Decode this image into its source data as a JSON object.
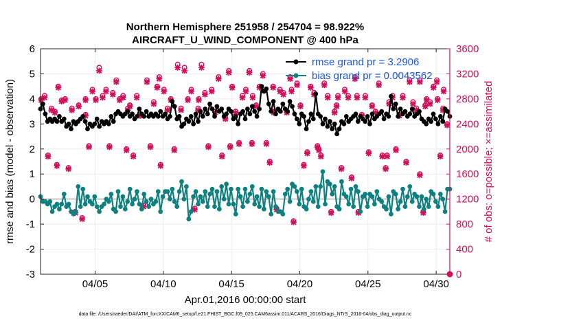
{
  "chart_data": {
    "type": "line",
    "title_line1": "Northern Hemisphere 251958 / 254704 = 98.922%",
    "title_line2": "AIRCRAFT_U_WIND_COMPONENT @ 400 hPa",
    "xlabel": "Apr.01,2016 00:00:00 start",
    "ylabel_left": "rmse and bias (model - observation)",
    "ylabel_right": "# of obs: o=possible; ×=assimilated",
    "footer": "data file: /Users/raeder/DAI/ATM_forcXX/CAM6_setup/f.e21.FHIST_BGC.f09_025.CAM6assim.011/ACARS_2016/Diags_NTrS_2016-04/obs_diag_output.nc",
    "xlim": [
      1.0,
      31.0
    ],
    "ylim_left": [
      -3,
      6
    ],
    "ylim_right": [
      0,
      3600
    ],
    "x_ticks": [
      5,
      10,
      15,
      20,
      25,
      30
    ],
    "x_tick_labels": [
      "04/05",
      "04/10",
      "04/15",
      "04/20",
      "04/25",
      "04/30"
    ],
    "y_ticks_left": [
      "-3",
      "-2",
      "-1",
      "0",
      "1",
      "2",
      "3",
      "4",
      "5",
      "6"
    ],
    "y_ticks_right": [
      "0",
      "400",
      "800",
      "1200",
      "1600",
      "2000",
      "2400",
      "2800",
      "3200",
      "3600"
    ],
    "legend": [
      {
        "name": "rmse grand pr = 3.2906",
        "color": "#000000"
      },
      {
        "name": "bias grand pr = 0.0043562",
        "color": "#0f8080"
      }
    ],
    "colors": {
      "rmse": "#000000",
      "bias": "#0f8080",
      "obs": "#d0105a",
      "axis_right": "#d0105a"
    },
    "series": [
      {
        "name": "rmse",
        "values": [
          3.6,
          3.8,
          3.4,
          3.1,
          3.2,
          3.1,
          3.2,
          3.1,
          3.3,
          3.1,
          3.2,
          2.9,
          3.0,
          2.8,
          3.1,
          3.0,
          3.1,
          3.2,
          3.3,
          3.1,
          2.8,
          3.0,
          2.9,
          3.0,
          3.2,
          2.9,
          3.1,
          3.0,
          3.1,
          3.0,
          3.3,
          3.1,
          3.4,
          3.5,
          3.4,
          3.3,
          3.4,
          3.5,
          3.3,
          3.4,
          3.2,
          3.3,
          3.6,
          3.4,
          3.3,
          3.5,
          3.3,
          3.4,
          3.3,
          3.4,
          3.3,
          3.5,
          3.3,
          3.4,
          3.2,
          3.3,
          3.9,
          3.7,
          3.2,
          3.3,
          2.9,
          3.0,
          3.2,
          3.1,
          3.3,
          3.0,
          3.4,
          3.1,
          3.5,
          3.3,
          3.6,
          3.4,
          3.8,
          3.6,
          3.3,
          3.7,
          3.5,
          3.6,
          3.3,
          3.4,
          3.6,
          3.5,
          3.2,
          3.3,
          3.0,
          3.4,
          3.5,
          3.2,
          3.6,
          3.4,
          3.7,
          3.5,
          3.3,
          3.6,
          4.5,
          4.3,
          4.4,
          3.8,
          3.5,
          3.9,
          3.4,
          3.6,
          3.5,
          3.8,
          3.6,
          3.5,
          3.9,
          3.7,
          3.4,
          3.2,
          3.0,
          3.4,
          3.3,
          2.8,
          3.1,
          3.4,
          3.2,
          4.2,
          3.4,
          3.3,
          3.0,
          3.2,
          2.9,
          3.1,
          2.8,
          3.0,
          2.6,
          2.8,
          3.1,
          3.0,
          3.3,
          3.1,
          3.2,
          3.3,
          3.4,
          3.1,
          3.3,
          3.2,
          3.1,
          3.3,
          3.0,
          3.4,
          3.2,
          3.3,
          3.4,
          3.5,
          3.2,
          3.4,
          3.3,
          4.1,
          3.6,
          3.8,
          3.3,
          3.6,
          3.4,
          3.5,
          3.3,
          3.4,
          3.6,
          3.3,
          3.4,
          3.5,
          3.2,
          3.1,
          3.0,
          3.2,
          3.1,
          3.4,
          3.2,
          3.0,
          3.3,
          3.1,
          3.6,
          3.5,
          3.3
        ]
      },
      {
        "name": "bias",
        "values": [
          0.1,
          -0.1,
          -0.1,
          -0.2,
          -0.1,
          -0.5,
          -0.3,
          -0.2,
          -0.4,
          -0.2,
          0.2,
          -0.3,
          -0.2,
          -0.5,
          -0.6,
          -0.5,
          0.5,
          -0.3,
          0.4,
          -0.2,
          0.1,
          -0.1,
          -0.2,
          0.1,
          -0.3,
          -0.5,
          -0.3,
          -0.2,
          0.0,
          -0.1,
          0.2,
          -0.4,
          -0.5,
          0.3,
          -0.3,
          0.1,
          -0.4,
          -0.1,
          0.4,
          -0.2,
          0.0,
          0.3,
          -0.2,
          -0.4,
          0.2,
          -0.1,
          -0.3,
          0.0,
          -0.2,
          -0.1,
          0.3,
          -0.5,
          0.1,
          0.3,
          0.3,
          0.0,
          0.4,
          -0.1,
          -0.3,
          0.3,
          0.7,
          0.0,
          0.5,
          -0.8,
          -0.5,
          0.1,
          0.3,
          -0.2,
          0.1,
          -0.1,
          0.3,
          -0.3,
          0.2,
          0.4,
          -0.3,
          0.3,
          -0.4,
          0.5,
          0.0,
          0.6,
          -0.2,
          0.4,
          -0.2,
          -0.6,
          0.4,
          0.1,
          -0.3,
          0.4,
          -0.1,
          0.2,
          0.5,
          -0.2,
          0.1,
          -0.3,
          0.4,
          -0.4,
          0.3,
          0.1,
          -0.6,
          0.3,
          -0.3,
          -0.5,
          -0.5,
          -0.6,
          0.2,
          0.4,
          -0.1,
          0.6,
          0.5,
          0.3,
          -0.2,
          0.4,
          -0.3,
          -0.4,
          0.0,
          0.3,
          -0.1,
          0.5,
          -0.3,
          0.5,
          1.1,
          -0.2,
          0.7,
          0.6,
          0.2,
          0.5,
          -0.3,
          -0.4,
          0.7,
          0.2,
          0.1,
          -0.2,
          0.4,
          -0.3,
          0.5,
          0.3,
          -0.5,
          0.1,
          0.2,
          -0.3,
          0.2,
          0.1,
          -0.2,
          0.3,
          0.0,
          -0.1,
          -0.3,
          -0.4,
          0.1,
          -0.6,
          0.3,
          0.2,
          -0.4,
          -0.1,
          0.4,
          -0.3,
          0.1,
          0.5,
          -0.1,
          0.2,
          0.1,
          -0.3,
          0.1,
          -0.4,
          0.0,
          -0.3,
          0.3,
          0.2,
          -0.1,
          -0.3,
          0.2,
          0.0,
          -0.5,
          0.4,
          0.4
        ]
      },
      {
        "name": "obs_possible",
        "values": [
          2800,
          2850,
          1900,
          2650,
          2600,
          3000,
          2780,
          2800,
          1700,
          2650,
          1000,
          2700,
          900,
          2550,
          2050,
          2950,
          2800,
          3300,
          2850,
          2950,
          2050,
          2900,
          3100,
          2800,
          2850,
          2000,
          2700,
          1900,
          2850,
          2550,
          1100,
          3100,
          2050,
          2750,
          3000,
          1750,
          2950,
          2650,
          2800,
          2000,
          3350,
          2650,
          3300,
          2800,
          2950,
          1050,
          2650,
          3350,
          2900,
          2050,
          2950,
          2600,
          3150,
          1900,
          2500,
          3250,
          3000,
          2600,
          2100,
          2850,
          2950,
          3250,
          2850,
          2700,
          3000,
          3200,
          2100,
          1800,
          3000,
          1050,
          2950,
          2900,
          2600,
          3150,
          850,
          3050,
          2700,
          1750,
          1950,
          3000,
          2900,
          2050,
          1900,
          3050,
          2850,
          1000,
          2600,
          2850,
          1700,
          2950,
          2850,
          1550,
          3150,
          1000,
          2550,
          2850,
          1950,
          2700,
          2600,
          3050,
          1900,
          1700,
          2750,
          2850,
          2000,
          2550,
          2850,
          1800,
          3100,
          2750,
          2650,
          1600,
          1000,
          2800,
          2750,
          3000,
          3100,
          1900,
          2950,
          2400,
          1750,
          2650,
          2800,
          2050,
          2600,
          2950,
          2700,
          2850,
          1900,
          3100,
          2800,
          2650,
          2100,
          3150,
          2800,
          2000,
          2700
        ],
        "x": [
          1.05,
          1.3,
          1.55,
          1.8,
          2.05,
          2.3,
          2.55,
          2.8,
          3.05,
          3.3,
          3.55,
          3.8,
          4.05,
          4.3,
          4.55,
          4.8,
          5.05,
          5.3,
          5.55,
          5.8,
          6.05,
          6.3,
          6.55,
          6.8,
          7.05,
          7.3,
          7.55,
          7.8,
          8.05,
          8.3,
          8.55,
          8.8,
          9.05,
          9.3,
          9.55,
          9.8,
          10.05,
          10.3,
          10.55,
          10.8,
          11.05,
          11.3,
          11.55,
          11.8,
          12.05,
          12.3,
          12.55,
          12.8,
          13.05,
          13.3,
          13.55,
          13.8,
          14.05,
          14.3,
          14.55,
          14.8,
          15.05,
          15.3,
          15.55,
          15.8,
          16.05,
          16.3,
          16.55,
          16.8,
          17.05,
          17.3,
          17.55,
          17.8,
          18.05,
          18.3,
          18.55,
          18.8,
          19.05,
          19.3,
          19.55,
          19.8,
          20.05,
          20.3,
          20.55,
          20.8,
          21.05,
          21.3,
          21.55,
          21.8,
          22.05,
          22.3,
          22.55,
          22.8,
          23.05,
          23.3,
          23.55,
          23.8,
          24.05,
          24.3,
          24.55,
          24.8,
          25.05,
          25.3,
          25.55,
          25.8,
          26.05,
          26.3,
          26.55,
          26.8,
          27.05,
          27.3,
          27.55,
          27.8,
          28.05,
          28.3,
          28.55,
          28.8,
          29.05,
          29.3,
          29.55,
          29.8,
          30.05,
          30.3,
          30.55,
          30.8,
          2.2,
          7.4,
          12.6,
          14.9,
          18.1,
          19.4,
          22.7,
          24.2,
          26.4,
          28.8,
          30.1,
          30.5,
          16.5,
          9.7,
          4.3,
          21.4,
          29.2
        ]
      },
      {
        "name": "obs_assimilated",
        "values": [
          2780,
          2820,
          1880,
          2620,
          2580,
          2980,
          2760,
          2780,
          1680,
          2620,
          980,
          2680,
          880,
          2530,
          2030,
          2920,
          2780,
          3250,
          2820,
          2920,
          2030,
          2870,
          3070,
          2780,
          2820,
          1980,
          2680,
          1880,
          2820,
          2530,
          1080,
          3070,
          2030,
          2720,
          2980,
          1730,
          2920,
          2620,
          2780,
          1980,
          3300,
          2620,
          3250,
          2780,
          2920,
          1030,
          2620,
          3300,
          2870,
          2030,
          2920,
          2580,
          3120,
          1880,
          2480,
          3220,
          2980,
          2580,
          2080,
          2820,
          2920,
          3220,
          2820,
          2680,
          2980,
          3170,
          2080,
          1780,
          2980,
          1030,
          2920,
          2870,
          2580,
          3120,
          830,
          3020,
          2680,
          1730,
          1930,
          2980,
          2870,
          2030,
          1880,
          3020,
          2820,
          980,
          2580,
          2820,
          1680,
          2920,
          2820,
          1530,
          3120,
          980,
          2530,
          2820,
          1930,
          2680,
          2580,
          3020,
          1880,
          1680,
          2720,
          2820,
          1980,
          2530,
          2820,
          1780,
          3070,
          2720,
          2620,
          1580,
          980,
          2780,
          2720,
          2980,
          3070,
          1880,
          2920,
          2380,
          1730,
          2620,
          2780,
          2030,
          2580,
          2920,
          2680,
          2820,
          1880,
          3070,
          2780,
          2620,
          2080,
          3120,
          2780,
          1980,
          2680
        ]
      }
    ]
  }
}
